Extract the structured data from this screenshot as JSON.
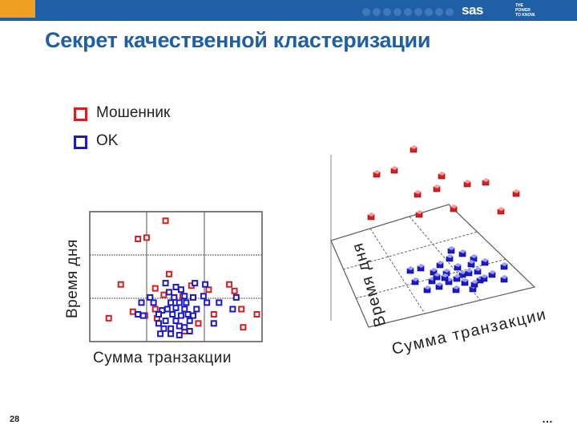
{
  "header": {
    "logo_text": "sas",
    "tagline_lines": [
      "THE",
      "POWER",
      "TO KNOW."
    ],
    "bar_color": "#1f5fa6",
    "accent_color": "#f0a020"
  },
  "slide": {
    "title": "Секрет качественной кластеризации",
    "page_number": "28",
    "ellipsis": "…"
  },
  "legend": [
    {
      "label": "Мошенник",
      "color": "#d42020"
    },
    {
      "label": "OK",
      "color": "#1a1acc"
    }
  ],
  "chart_data": [
    {
      "type": "scatter",
      "xlabel": "Сумма транзакции",
      "ylabel": "Время дня",
      "grid": true,
      "series": [
        {
          "name": "Мошенник",
          "color": "#d42020",
          "points": [
            [
              0.44,
              0.93
            ],
            [
              0.28,
              0.79
            ],
            [
              0.33,
              0.8
            ],
            [
              0.11,
              0.18
            ],
            [
              0.38,
              0.25
            ],
            [
              0.43,
              0.36
            ],
            [
              0.54,
              0.35
            ],
            [
              0.46,
              0.52
            ],
            [
              0.59,
              0.43
            ],
            [
              0.81,
              0.44
            ],
            [
              0.97,
              0.21
            ],
            [
              0.25,
              0.23
            ],
            [
              0.32,
              0.2
            ],
            [
              0.69,
              0.4
            ],
            [
              0.88,
              0.25
            ],
            [
              0.89,
              0.11
            ],
            [
              0.55,
              0.08
            ],
            [
              0.63,
              0.14
            ],
            [
              0.38,
              0.41
            ],
            [
              0.72,
              0.21
            ],
            [
              0.18,
              0.44
            ],
            [
              0.84,
              0.39
            ],
            [
              0.39,
              0.18
            ]
          ]
        },
        {
          "name": "OK",
          "color": "#1a1acc",
          "points": [
            [
              0.44,
              0.45
            ],
            [
              0.5,
              0.42
            ],
            [
              0.46,
              0.38
            ],
            [
              0.53,
              0.4
            ],
            [
              0.55,
              0.35
            ],
            [
              0.49,
              0.34
            ],
            [
              0.52,
              0.3
            ],
            [
              0.56,
              0.3
            ],
            [
              0.47,
              0.3
            ],
            [
              0.5,
              0.26
            ],
            [
              0.55,
              0.25
            ],
            [
              0.45,
              0.25
            ],
            [
              0.42,
              0.24
            ],
            [
              0.4,
              0.21
            ],
            [
              0.48,
              0.21
            ],
            [
              0.53,
              0.2
            ],
            [
              0.57,
              0.21
            ],
            [
              0.6,
              0.2
            ],
            [
              0.5,
              0.16
            ],
            [
              0.44,
              0.16
            ],
            [
              0.4,
              0.14
            ],
            [
              0.52,
              0.12
            ],
            [
              0.47,
              0.1
            ],
            [
              0.55,
              0.11
            ],
            [
              0.58,
              0.16
            ],
            [
              0.62,
              0.25
            ],
            [
              0.6,
              0.34
            ],
            [
              0.66,
              0.35
            ],
            [
              0.61,
              0.45
            ],
            [
              0.67,
              0.44
            ],
            [
              0.68,
              0.3
            ],
            [
              0.75,
              0.3
            ],
            [
              0.85,
              0.34
            ],
            [
              0.83,
              0.25
            ],
            [
              0.72,
              0.14
            ],
            [
              0.35,
              0.34
            ],
            [
              0.37,
              0.3
            ],
            [
              0.3,
              0.3
            ],
            [
              0.28,
              0.21
            ],
            [
              0.31,
              0.2
            ],
            [
              0.43,
              0.1
            ],
            [
              0.47,
              0.06
            ],
            [
              0.52,
              0.05
            ],
            [
              0.41,
              0.06
            ],
            [
              0.58,
              0.08
            ]
          ]
        }
      ]
    },
    {
      "type": "scatter",
      "xlabel": "Сумма транзакции",
      "ylabel": "Время дня",
      "grid": true,
      "view": "3d"
    }
  ]
}
